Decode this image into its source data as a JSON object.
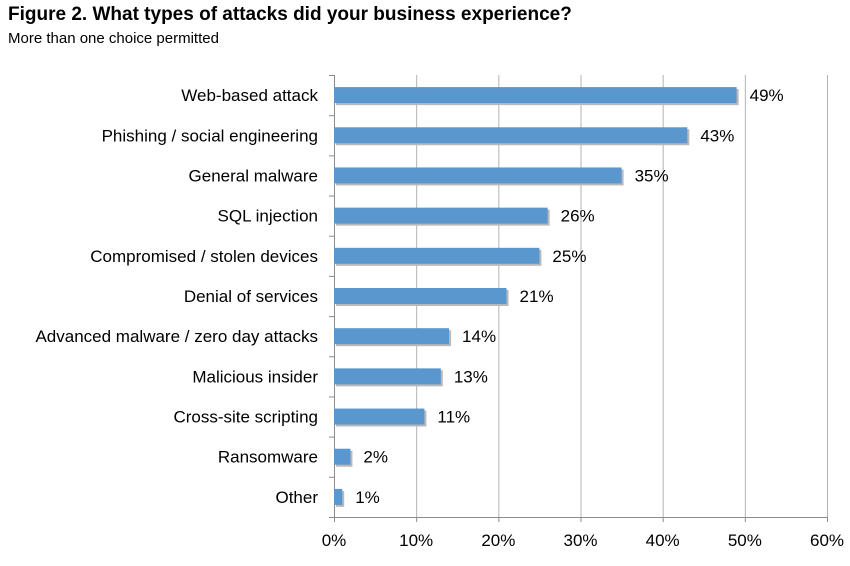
{
  "chart_data": {
    "type": "bar",
    "orientation": "horizontal",
    "title": "Figure 2. What types of attacks did your business experience?",
    "subtitle": "More than one choice permitted",
    "categories": [
      "Web-based attack",
      "Phishing / social engineering",
      "General malware",
      "SQL injection",
      "Compromised / stolen devices",
      "Denial of services",
      "Advanced malware / zero day attacks",
      "Malicious insider",
      "Cross-site scripting",
      "Ransomware",
      "Other"
    ],
    "values": [
      49,
      43,
      35,
      26,
      25,
      21,
      14,
      13,
      11,
      2,
      1
    ],
    "value_labels": [
      "49%",
      "43%",
      "35%",
      "26%",
      "25%",
      "21%",
      "14%",
      "13%",
      "11%",
      "2%",
      "1%"
    ],
    "x_ticks": [
      0,
      10,
      20,
      30,
      40,
      50,
      60
    ],
    "x_tick_labels": [
      "0%",
      "10%",
      "20%",
      "30%",
      "40%",
      "50%",
      "60%"
    ],
    "xlim": [
      0,
      60
    ],
    "xlabel": "",
    "ylabel": "",
    "grid": true,
    "legend": "none",
    "colors": {
      "bar": "#5b97cf",
      "bar_shadow": "#b9b9b9",
      "grid": "#b3b3b3",
      "axis": "#8c8c8c"
    }
  }
}
